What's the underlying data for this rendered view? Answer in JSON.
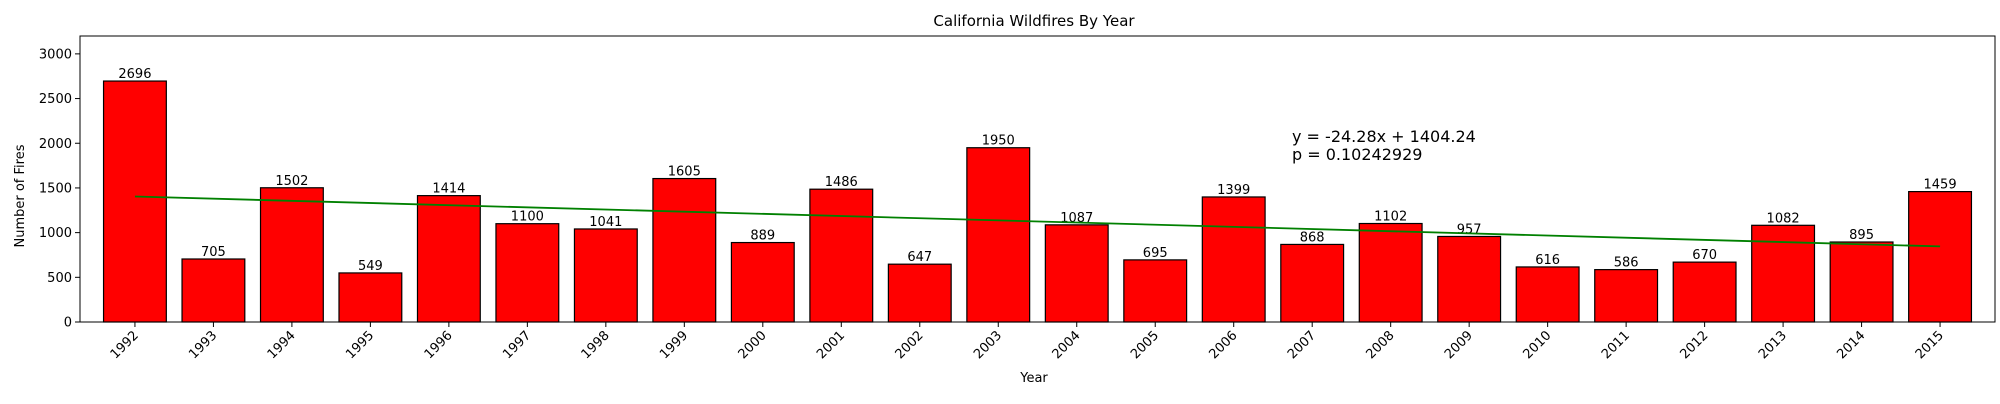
{
  "chart_data": {
    "type": "bar",
    "title": "California Wildfires By Year",
    "xlabel": "Year",
    "ylabel": "Number of Fires",
    "categories": [
      "1992",
      "1993",
      "1994",
      "1995",
      "1996",
      "1997",
      "1998",
      "1999",
      "2000",
      "2001",
      "2002",
      "2003",
      "2004",
      "2005",
      "2006",
      "2007",
      "2008",
      "2009",
      "2010",
      "2011",
      "2012",
      "2013",
      "2014",
      "2015"
    ],
    "values": [
      2696,
      705,
      1502,
      549,
      1414,
      1100,
      1041,
      1605,
      889,
      1486,
      647,
      1950,
      1087,
      695,
      1399,
      868,
      1102,
      957,
      616,
      586,
      670,
      1082,
      895,
      1459
    ],
    "ylim": [
      0,
      3200
    ],
    "yticks": [
      0,
      500,
      1000,
      1500,
      2000,
      2500,
      3000
    ],
    "bar_color": "#ff0000",
    "bar_edge_color": "#000000",
    "grid": false,
    "legend": false,
    "trendline": {
      "slope": -24.28,
      "intercept": 1404.24,
      "color": "#008000"
    },
    "annotations": [
      {
        "text": "y = -24.28x + 1404.24",
        "color": "#008000"
      },
      {
        "text": "p = 0.10242929",
        "color": "#0000ff"
      }
    ]
  }
}
